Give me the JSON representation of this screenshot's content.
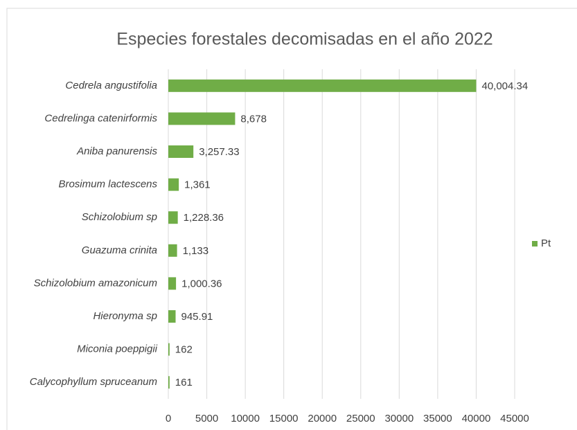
{
  "chart_data": {
    "type": "bar",
    "orientation": "horizontal",
    "title": "Especies forestales decomisadas en el año 2022",
    "categories": [
      "Cedrela angustifolia",
      "Cedrelinga catenirformis",
      "Aniba panurensis",
      "Brosimum lactescens",
      "Schizolobium sp",
      "Guazuma crinita",
      "Schizolobium amazonicum",
      "Hieronyma sp",
      "Miconia poeppigii",
      "Calycophyllum spruceanum"
    ],
    "series": [
      {
        "name": "Pt",
        "color": "#70ad47",
        "values": [
          40004.34,
          8678,
          3257.33,
          1361,
          1228.36,
          1133,
          1000.36,
          945.91,
          162,
          161
        ],
        "value_labels": [
          "40,004.34",
          "8,678",
          "3,257.33",
          "1,361",
          "1,228.36",
          "1,133",
          "1,000.36",
          "945.91",
          "162",
          "161"
        ]
      }
    ],
    "xlim": [
      0,
      45000
    ],
    "xticks": [
      0,
      5000,
      10000,
      15000,
      20000,
      25000,
      30000,
      35000,
      40000,
      45000
    ],
    "grid": true,
    "legend": "right"
  }
}
